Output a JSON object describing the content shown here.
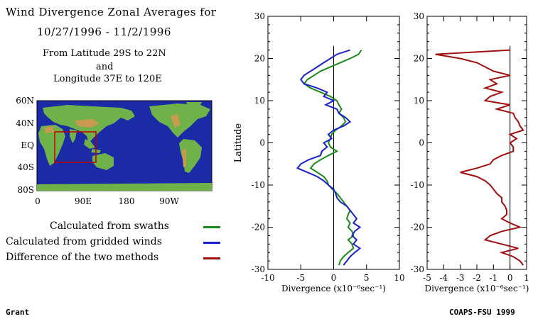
{
  "header": {
    "line1": "Wind Divergence Zonal Averages for",
    "line2": "10/27/1996 - 11/2/1996",
    "line3": "From Latitude 29S to 22N",
    "line4": "and",
    "line5": "Longitude 37E to 120E"
  },
  "map": {
    "y_ticks": [
      "60N",
      "40N",
      "EQ",
      "40S",
      "80S"
    ],
    "x_ticks": [
      "0",
      "90E",
      "180",
      "90W"
    ],
    "ocean_color": "#1b2aa5",
    "region_box_color": "#c00000"
  },
  "legend": [
    {
      "label": "Calculated from swaths",
      "color": "#1a8a1a"
    },
    {
      "label": "Calculated from gridded winds",
      "color": "#1a22c8"
    },
    {
      "label": "Difference of the two methods",
      "color": "#a01010"
    }
  ],
  "credits": {
    "left": "Grant",
    "right": "COAPS-FSU 1999"
  },
  "chart_data": [
    {
      "type": "line",
      "orientation": "vertical-profile",
      "xlim": [
        -10,
        10
      ],
      "ylim": [
        -30,
        30
      ],
      "x_ticks": [
        -10,
        -5,
        0,
        5,
        10
      ],
      "y_ticks": [
        -30,
        -20,
        -10,
        0,
        10,
        20,
        30
      ],
      "xlabel": "Divergence (x10⁻⁶sec⁻¹)",
      "ylabel": "Latitude",
      "zero_line": true,
      "series": [
        {
          "color": "#1a8a1a",
          "y": [
            22,
            21,
            20,
            19,
            18,
            17,
            16,
            15,
            14,
            13,
            12,
            11,
            10,
            9,
            8,
            7,
            6,
            5,
            4,
            3,
            2,
            1,
            0,
            -1,
            -2,
            -3,
            -4,
            -5,
            -6,
            -7,
            -8,
            -9,
            -10,
            -11,
            -12,
            -13,
            -14,
            -15,
            -16,
            -17,
            -18,
            -19,
            -20,
            -21,
            -22,
            -23,
            -24,
            -25,
            -26,
            -27,
            -28,
            -29
          ],
          "x": [
            4.2,
            3.8,
            2.5,
            1.0,
            -0.5,
            -2.0,
            -3.0,
            -4.0,
            -4.5,
            -3.5,
            -2.0,
            -0.5,
            0.5,
            0.8,
            1.2,
            0.8,
            1.5,
            1.8,
            1.2,
            0.3,
            -0.3,
            -0.5,
            -0.8,
            -0.5,
            0.5,
            -0.8,
            -2.0,
            -3.0,
            -3.5,
            -2.5,
            -1.5,
            -1.0,
            -0.8,
            -0.2,
            0.5,
            1.0,
            1.5,
            2.0,
            2.5,
            2.2,
            2.0,
            2.5,
            2.2,
            2.8,
            3.0,
            2.2,
            2.8,
            3.0,
            2.2,
            1.5,
            1.0,
            0.8
          ]
        },
        {
          "color": "#1a22c8",
          "y": [
            22,
            21,
            20,
            19,
            18,
            17,
            16,
            15,
            14,
            13,
            12,
            11,
            10,
            9,
            8,
            7,
            6,
            5,
            4,
            3,
            2,
            1,
            0,
            -1,
            -2,
            -3,
            -4,
            -5,
            -6,
            -7,
            -8,
            -9,
            -10,
            -11,
            -12,
            -13,
            -14,
            -15,
            -16,
            -17,
            -18,
            -19,
            -20,
            -21,
            -22,
            -23,
            -24,
            -25,
            -26,
            -27,
            -28,
            -29
          ],
          "x": [
            2.5,
            0.5,
            -0.5,
            -1.5,
            -2.5,
            -3.5,
            -4.5,
            -5.0,
            -4.5,
            -2.5,
            -1.0,
            -1.5,
            0.0,
            -1.2,
            0.5,
            0.8,
            1.8,
            2.5,
            1.5,
            0.0,
            -0.8,
            -0.3,
            -1.5,
            -1.0,
            -1.8,
            -2.0,
            -3.8,
            -5.0,
            -5.5,
            -4.0,
            -2.5,
            -1.5,
            -0.8,
            0.0,
            0.3,
            0.5,
            1.0,
            2.0,
            2.5,
            3.0,
            3.5,
            3.0,
            4.0,
            3.2,
            2.8,
            3.5,
            3.0,
            4.0,
            3.2,
            2.5,
            2.0,
            1.5
          ]
        }
      ]
    },
    {
      "type": "line",
      "orientation": "vertical-profile",
      "xlim": [
        -5,
        1
      ],
      "ylim": [
        -30,
        30
      ],
      "x_ticks": [
        -5,
        -4,
        -3,
        -2,
        -1,
        0,
        1
      ],
      "y_ticks": [
        -30,
        -20,
        -10,
        0,
        10,
        20,
        30
      ],
      "xlabel": "Divergence (x10⁻⁶sec⁻¹)",
      "zero_line": true,
      "series": [
        {
          "color": "#a01010",
          "y": [
            22,
            21,
            20,
            19,
            18,
            17,
            16,
            15,
            14,
            13,
            12,
            11,
            10,
            9,
            8,
            7,
            6,
            5,
            4,
            3,
            2,
            1,
            0,
            -1,
            -2,
            -3,
            -4,
            -5,
            -6,
            -7,
            -8,
            -9,
            -10,
            -11,
            -12,
            -13,
            -14,
            -15,
            -16,
            -17,
            -18,
            -19,
            -20,
            -21,
            -22,
            -23,
            -24,
            -25,
            -26,
            -27,
            -28,
            -29
          ],
          "x": [
            0.0,
            -4.5,
            -3.0,
            -2.0,
            -1.5,
            -1.0,
            0.0,
            -1.2,
            -0.8,
            -1.5,
            -0.5,
            -1.2,
            -1.5,
            0.0,
            -0.8,
            0.2,
            0.3,
            0.5,
            0.6,
            0.8,
            0.0,
            0.4,
            0.0,
            0.2,
            0.2,
            -0.5,
            -1.0,
            -1.2,
            -2.0,
            -3.0,
            -2.0,
            -1.5,
            -1.2,
            -1.0,
            -0.8,
            -0.5,
            -0.5,
            -0.3,
            -0.2,
            -0.2,
            -0.5,
            0.0,
            0.6,
            -0.5,
            -1.2,
            -1.5,
            -0.5,
            0.5,
            -0.5,
            0.2,
            0.6,
            0.8
          ]
        }
      ]
    }
  ]
}
